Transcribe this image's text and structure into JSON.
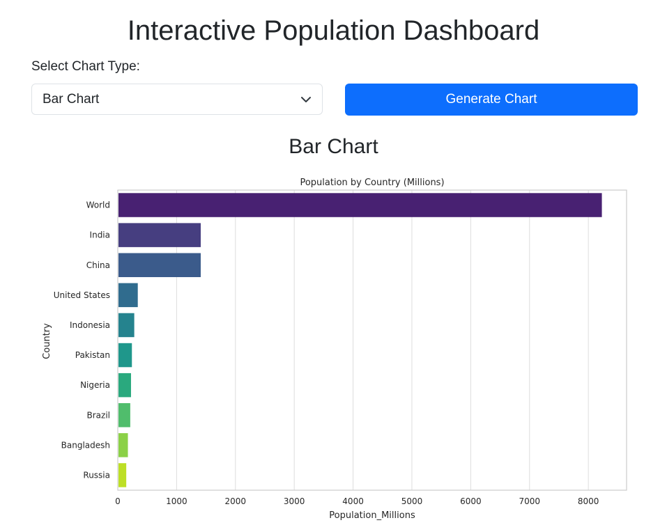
{
  "header": {
    "title": "Interactive Population Dashboard"
  },
  "controls": {
    "select_label": "Select Chart Type:",
    "select_value": "Bar Chart",
    "button_label": "Generate Chart"
  },
  "section": {
    "heading": "Bar Chart"
  },
  "chart_data": {
    "type": "bar",
    "orientation": "horizontal",
    "title": "Population by Country (Millions)",
    "xlabel": "Population_Millions",
    "ylabel": "Country",
    "categories": [
      "World",
      "India",
      "China",
      "United States",
      "Indonesia",
      "Pakistan",
      "Nigeria",
      "Brazil",
      "Bangladesh",
      "Russia"
    ],
    "values": [
      8230,
      1410,
      1410,
      340,
      280,
      240,
      225,
      212,
      172,
      144
    ],
    "xlim": [
      0,
      8650
    ],
    "xticks": [
      0,
      1000,
      2000,
      3000,
      4000,
      5000,
      6000,
      7000,
      8000
    ],
    "grid": true,
    "colors": [
      "#482172",
      "#463e80",
      "#3b5b8b",
      "#306c8e",
      "#25838e",
      "#1f978b",
      "#2aa97e",
      "#50bd6c",
      "#8bd147",
      "#bddf26"
    ]
  }
}
